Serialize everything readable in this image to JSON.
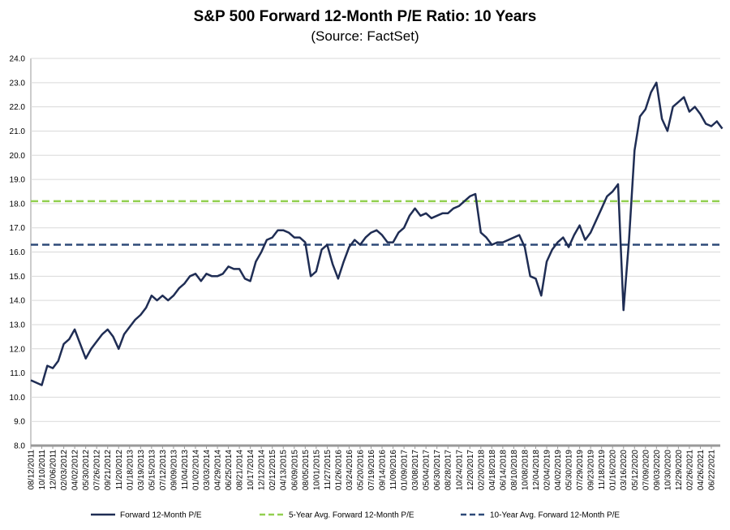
{
  "chart_data": {
    "type": "line",
    "title": "S&P 500 Forward 12-Month P/E Ratio: 10 Years",
    "subtitle": "(Source: FactSet)",
    "categories": [
      "08/12/2011",
      null,
      "10/10/2011",
      null,
      "12/06/2011",
      null,
      "02/03/2012",
      null,
      "04/02/2012",
      null,
      "05/30/2012",
      null,
      "07/26/2012",
      null,
      "09/21/2012",
      null,
      "11/20/2012",
      null,
      "01/18/2013",
      null,
      "03/19/2013",
      null,
      "05/15/2013",
      null,
      "07/12/2013",
      null,
      "09/09/2013",
      null,
      "11/04/2013",
      null,
      "01/02/2014",
      null,
      "03/03/2014",
      null,
      "04/29/2014",
      null,
      "06/25/2014",
      null,
      "08/21/2014",
      null,
      "10/17/2014",
      null,
      "12/12/2014",
      null,
      "02/12/2015",
      null,
      "04/13/2015",
      null,
      "06/09/2015",
      null,
      "08/05/2015",
      null,
      "10/01/2015",
      null,
      "11/27/2015",
      null,
      "01/26/2016",
      null,
      "03/24/2016",
      null,
      "05/20/2016",
      null,
      "07/19/2016",
      null,
      "09/14/2016",
      null,
      "11/09/2016",
      null,
      "01/09/2017",
      null,
      "03/08/2017",
      null,
      "05/04/2017",
      null,
      "06/30/2017",
      null,
      "08/28/2017",
      null,
      "10/24/2017",
      null,
      "12/20/2017",
      null,
      "02/20/2018",
      null,
      "04/18/2018",
      null,
      "06/14/2018",
      null,
      "08/10/2018",
      null,
      "10/08/2018",
      null,
      "12/04/2018",
      null,
      "02/04/2019",
      null,
      "04/02/2019",
      null,
      "05/30/2019",
      null,
      "07/29/2019",
      null,
      "09/23/2019",
      null,
      "11/18/2019",
      null,
      "01/16/2020",
      null,
      "03/16/2020",
      null,
      "05/12/2020",
      null,
      "07/09/2020",
      null,
      "09/03/2020",
      null,
      "10/30/2020",
      null,
      "12/29/2020",
      null,
      "02/26/2021",
      null,
      "04/26/2021",
      null,
      "06/22/2021",
      null,
      null
    ],
    "series": [
      {
        "name": "Forward 12-Month P/E",
        "color": "#1f2d54",
        "values": [
          10.7,
          10.6,
          10.5,
          11.3,
          11.2,
          11.5,
          12.2,
          12.4,
          12.8,
          12.2,
          11.6,
          12.0,
          12.3,
          12.6,
          12.8,
          12.5,
          12.0,
          12.6,
          12.9,
          13.2,
          13.4,
          13.7,
          14.2,
          14.0,
          14.2,
          14.0,
          14.2,
          14.5,
          14.7,
          15.0,
          15.1,
          14.8,
          15.1,
          15.0,
          15.0,
          15.1,
          15.4,
          15.3,
          15.3,
          14.9,
          14.8,
          15.6,
          16.0,
          16.5,
          16.6,
          16.9,
          16.9,
          16.8,
          16.6,
          16.6,
          16.4,
          15.0,
          15.2,
          16.1,
          16.3,
          15.5,
          14.9,
          15.6,
          16.2,
          16.5,
          16.3,
          16.6,
          16.8,
          16.9,
          16.7,
          16.4,
          16.4,
          16.8,
          17.0,
          17.5,
          17.8,
          17.5,
          17.6,
          17.4,
          17.5,
          17.6,
          17.6,
          17.8,
          17.9,
          18.1,
          18.3,
          18.4,
          16.8,
          16.6,
          16.3,
          16.4,
          16.4,
          16.5,
          16.6,
          16.7,
          16.2,
          15.0,
          14.9,
          14.2,
          15.6,
          16.1,
          16.4,
          16.6,
          16.2,
          16.7,
          17.1,
          16.5,
          16.8,
          17.3,
          17.8,
          18.3,
          18.5,
          18.8,
          13.6,
          16.5,
          20.2,
          21.6,
          21.9,
          22.6,
          23.0,
          21.5,
          21.0,
          22.0,
          22.2,
          22.4,
          21.8,
          22.0,
          21.7,
          21.3,
          21.2,
          21.4,
          21.1
        ]
      }
    ],
    "reference_lines": [
      {
        "name": "5-Year Avg. Forward 12-Month P/E",
        "value": 18.1,
        "color": "#92d050"
      },
      {
        "name": "10-Year Avg. Forward 12-Month P/E",
        "value": 16.3,
        "color": "#2e4a78"
      }
    ],
    "ylim": [
      8,
      24
    ],
    "yticks": [
      {
        "value": 8,
        "label": "8.0"
      },
      {
        "value": 9,
        "label": "9.0"
      },
      {
        "value": 10,
        "label": "10.0"
      },
      {
        "value": 11,
        "label": "11.0"
      },
      {
        "value": 12,
        "label": "12.0"
      },
      {
        "value": 13,
        "label": "13.0"
      },
      {
        "value": 14,
        "label": "14.0"
      },
      {
        "value": 15,
        "label": "15.0"
      },
      {
        "value": 16,
        "label": "16.0"
      },
      {
        "value": 17,
        "label": "17.0"
      },
      {
        "value": 18,
        "label": "18.0"
      },
      {
        "value": 19,
        "label": "19.0"
      },
      {
        "value": 20,
        "label": "20.0"
      },
      {
        "value": 21,
        "label": "21.0"
      },
      {
        "value": 22,
        "label": "22.0"
      },
      {
        "value": 23,
        "label": "23.0"
      },
      {
        "value": 24,
        "label": "24.0"
      }
    ],
    "grid": true
  }
}
